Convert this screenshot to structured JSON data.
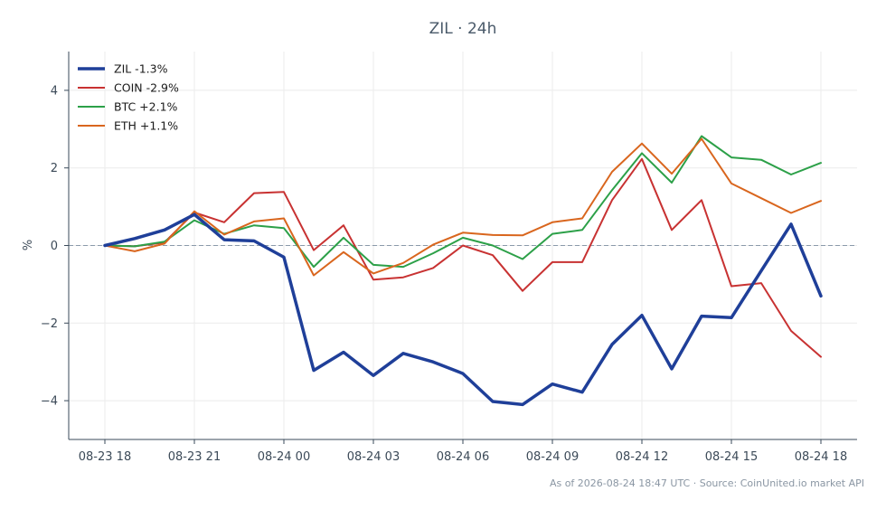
{
  "chart_data": {
    "type": "line",
    "title": "ZIL · 24h",
    "ylabel": "%",
    "xlabel": "",
    "ylim": [
      -5,
      5
    ],
    "yticks": [
      4,
      2,
      0,
      -2,
      -4
    ],
    "ytick_labels": [
      "4",
      "2",
      "0",
      "−2",
      "−4"
    ],
    "x_tick_labels": [
      "08-23 18",
      "08-23 21",
      "08-24 00",
      "08-24 03",
      "08-24 06",
      "08-24 09",
      "08-24 12",
      "08-24 15",
      "08-24 18"
    ],
    "x_tick_hours": [
      0,
      3,
      6,
      9,
      12,
      15,
      18,
      21,
      24
    ],
    "x_hours": [
      0,
      1,
      2,
      3,
      4,
      5,
      6,
      7,
      8,
      9,
      10,
      11,
      12,
      13,
      14,
      15,
      16,
      17,
      18,
      19,
      20,
      21,
      22,
      23,
      24
    ],
    "grid": true,
    "zero_line": true,
    "legend_position": "top-left",
    "series": [
      {
        "name": "ZIL -1.3%",
        "color": "#1f3f99",
        "width": 3.5,
        "values": [
          0,
          0.18,
          0.4,
          0.8,
          0.15,
          0.12,
          -0.3,
          -3.22,
          -2.75,
          -3.35,
          -2.78,
          -3.0,
          -3.3,
          -4.02,
          -4.1,
          -3.57,
          -3.78,
          -2.55,
          -1.8,
          -3.18,
          -1.82,
          -1.86,
          -0.65,
          0.55,
          -1.3
        ]
      },
      {
        "name": "COIN -2.9%",
        "color": "#c83232",
        "width": 2,
        "values": [
          0,
          -0.02,
          0.08,
          0.85,
          0.6,
          1.35,
          1.38,
          -0.12,
          0.52,
          -0.88,
          -0.82,
          -0.58,
          0.0,
          -0.25,
          -1.17,
          -0.43,
          -0.43,
          1.17,
          2.23,
          0.4,
          1.17,
          -1.05,
          -0.97,
          -2.2,
          -2.87
        ]
      },
      {
        "name": "BTC +2.1%",
        "color": "#2ca048",
        "width": 2,
        "values": [
          0,
          -0.02,
          0.1,
          0.65,
          0.3,
          0.52,
          0.45,
          -0.55,
          0.2,
          -0.5,
          -0.55,
          -0.2,
          0.2,
          0.0,
          -0.35,
          0.3,
          0.4,
          1.43,
          2.38,
          1.62,
          2.82,
          2.27,
          2.21,
          1.83,
          2.13
        ]
      },
      {
        "name": "ETH +1.1%",
        "color": "#d9661e",
        "width": 2,
        "values": [
          0,
          -0.15,
          0.05,
          0.88,
          0.28,
          0.62,
          0.7,
          -0.77,
          -0.17,
          -0.72,
          -0.45,
          0.02,
          0.33,
          0.27,
          0.26,
          0.6,
          0.7,
          1.9,
          2.63,
          1.85,
          2.75,
          1.6,
          1.22,
          0.84,
          1.15
        ]
      }
    ]
  },
  "footer": "As of 2026-08-24 18:47 UTC · Source: CoinUnited.io market API"
}
